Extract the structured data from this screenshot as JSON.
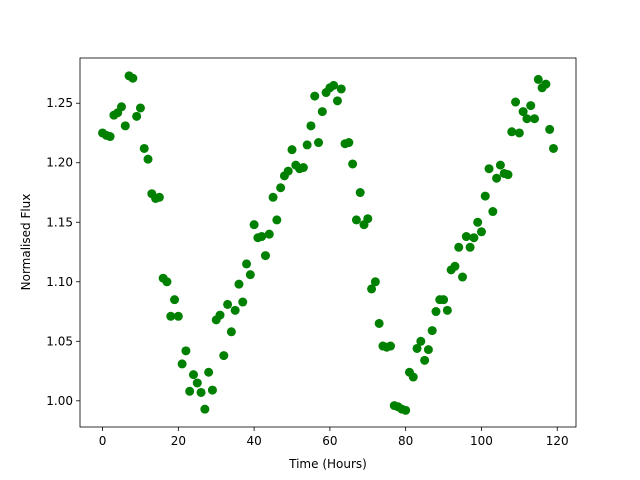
{
  "chart_data": {
    "type": "scatter",
    "xlabel": "Time (Hours)",
    "ylabel": "Normalised Flux",
    "x": [
      0,
      1,
      2,
      3,
      4,
      5,
      6,
      7,
      8,
      9,
      10,
      11,
      12,
      13,
      14,
      15,
      16,
      17,
      18,
      19,
      20,
      21,
      22,
      23,
      24,
      25,
      26,
      27,
      28,
      29,
      30,
      31,
      32,
      33,
      34,
      35,
      36,
      37,
      38,
      39,
      40,
      41,
      42,
      43,
      44,
      45,
      46,
      47,
      48,
      49,
      50,
      51,
      52,
      53,
      54,
      55,
      56,
      57,
      58,
      59,
      60,
      61,
      62,
      63,
      64,
      65,
      66,
      67,
      68,
      69,
      70,
      71,
      72,
      73,
      74,
      75,
      76,
      77,
      78,
      79,
      80,
      81,
      82,
      83,
      84,
      85,
      86,
      87,
      88,
      89,
      90,
      91,
      92,
      93,
      94,
      95,
      96,
      97,
      98,
      99,
      100,
      101,
      102,
      103,
      104,
      105,
      106,
      107,
      108,
      109,
      110,
      111,
      112,
      113,
      114,
      115,
      116,
      117,
      118,
      119
    ],
    "series": [
      {
        "color": "#008000",
        "values": [
          1.225,
          1.223,
          1.222,
          1.24,
          1.242,
          1.247,
          1.231,
          1.273,
          1.271,
          1.239,
          1.246,
          1.212,
          1.203,
          1.174,
          1.17,
          1.171,
          1.103,
          1.1,
          1.071,
          1.085,
          1.071,
          1.031,
          1.042,
          1.008,
          1.022,
          1.015,
          1.007,
          0.993,
          1.024,
          1.009,
          1.068,
          1.072,
          1.038,
          1.081,
          1.058,
          1.076,
          1.098,
          1.083,
          1.115,
          1.106,
          1.148,
          1.137,
          1.138,
          1.122,
          1.14,
          1.171,
          1.152,
          1.179,
          1.189,
          1.193,
          1.211,
          1.198,
          1.195,
          1.196,
          1.215,
          1.231,
          1.256,
          1.217,
          1.243,
          1.259,
          1.263,
          1.265,
          1.252,
          1.262,
          1.216,
          1.217,
          1.199,
          1.152,
          1.175,
          1.148,
          1.153,
          1.094,
          1.1,
          1.065,
          1.046,
          1.045,
          1.046,
          0.996,
          0.995,
          0.993,
          0.992,
          1.024,
          1.02,
          1.044,
          1.05,
          1.034,
          1.043,
          1.059,
          1.075,
          1.085,
          1.085,
          1.076,
          1.11,
          1.113,
          1.129,
          1.104,
          1.138,
          1.129,
          1.137,
          1.15,
          1.142,
          1.172,
          1.195,
          1.159,
          1.187,
          1.198,
          1.191,
          1.19,
          1.226,
          1.251,
          1.225,
          1.243,
          1.237,
          1.248,
          1.237,
          1.27,
          1.263,
          1.266,
          1.228,
          1.212
        ]
      }
    ],
    "xlim": [
      -5.95,
      124.95
    ],
    "ylim": [
      0.978,
      1.288
    ],
    "xticks": [
      0,
      20,
      40,
      60,
      80,
      100,
      120
    ],
    "yticks": [
      {
        "value": 1.0,
        "label": "1.00"
      },
      1.05,
      {
        "value": 1.1,
        "label": "1.10"
      },
      1.15,
      {
        "value": 1.2,
        "label": "1.20"
      },
      1.25
    ]
  }
}
